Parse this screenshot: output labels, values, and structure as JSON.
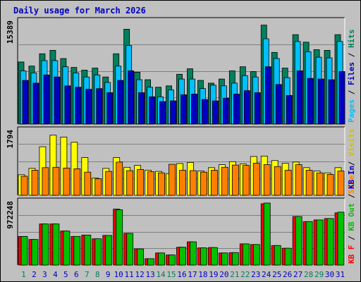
{
  "page": {
    "title": "Daily usage for March 2026"
  },
  "colors": {
    "background": "#c0c0c0",
    "plot": "#c0c0c0",
    "hits": "#00805c",
    "files": "#00c0ff",
    "pages": "#0000c0",
    "visits": "#ffff00",
    "sites": "#ff8000",
    "kb_in": "#00c000",
    "kb_out": "#00c000",
    "kb_f": "#ff0000",
    "label_blue": "#0000c0",
    "day_weekend": "#00805c"
  },
  "chart_data": [
    {
      "type": "bar",
      "name": "hits-files-pages",
      "categories": [
        "1",
        "2",
        "3",
        "4",
        "5",
        "6",
        "7",
        "8",
        "9",
        "10",
        "11",
        "12",
        "13",
        "14",
        "15",
        "16",
        "17",
        "18",
        "19",
        "20",
        "21",
        "22",
        "23",
        "24",
        "25",
        "26",
        "27",
        "28",
        "29",
        "30",
        "31"
      ],
      "ymax_label": "15389",
      "ylim": [
        0,
        15389
      ],
      "series": [
        {
          "name": "Hits",
          "values": [
            9100,
            8500,
            10300,
            10800,
            9600,
            8300,
            7900,
            8200,
            6900,
            10300,
            13900,
            7600,
            6500,
            5400,
            5600,
            7300,
            8100,
            6400,
            6000,
            6600,
            7800,
            8400,
            7700,
            14500,
            10500,
            8200,
            13100,
            12000,
            10900,
            10800,
            13100
          ]
        },
        {
          "name": "Files",
          "values": [
            7800,
            7500,
            9300,
            9300,
            8400,
            7500,
            6900,
            7200,
            6100,
            8500,
            11500,
            6500,
            5400,
            4000,
            5000,
            6600,
            6600,
            5200,
            5700,
            5600,
            6000,
            7100,
            6900,
            12500,
            9600,
            6800,
            12100,
            10600,
            9800,
            9700,
            12100
          ]
        },
        {
          "name": "Pages",
          "values": [
            6400,
            6000,
            7200,
            6900,
            5600,
            5400,
            5100,
            5200,
            4600,
            6400,
            7800,
            4600,
            4000,
            3300,
            3400,
            4300,
            4400,
            3600,
            3400,
            3800,
            4400,
            4900,
            4600,
            8400,
            5800,
            4200,
            7800,
            6700,
            6600,
            6500,
            7700
          ]
        }
      ],
      "legend": [
        "Pages",
        "Files",
        "Hits"
      ],
      "legend_placement": "right"
    },
    {
      "type": "bar",
      "name": "visits-sites",
      "categories": [
        "1",
        "2",
        "3",
        "4",
        "5",
        "6",
        "7",
        "8",
        "9",
        "10",
        "11",
        "12",
        "13",
        "14",
        "15",
        "16",
        "17",
        "18",
        "19",
        "20",
        "21",
        "22",
        "23",
        "24",
        "25",
        "26",
        "27",
        "28",
        "29",
        "30",
        "31"
      ],
      "ymax_label": "1794",
      "ylim": [
        0,
        1794
      ],
      "series": [
        {
          "name": "Visits",
          "values": [
            550,
            720,
            1300,
            1610,
            1560,
            1420,
            1010,
            460,
            720,
            1010,
            750,
            800,
            670,
            640,
            580,
            850,
            880,
            650,
            740,
            820,
            900,
            840,
            1040,
            1050,
            930,
            860,
            890,
            740,
            650,
            600,
            740
          ]
        },
        {
          "name": "Sites",
          "values": [
            510,
            670,
            740,
            750,
            730,
            710,
            620,
            440,
            640,
            890,
            660,
            690,
            630,
            600,
            830,
            670,
            660,
            620,
            670,
            750,
            810,
            800,
            860,
            820,
            770,
            670,
            820,
            670,
            600,
            560,
            650
          ]
        }
      ],
      "legend": [
        "Visits",
        "Sites"
      ],
      "legend_placement": "right"
    },
    {
      "type": "bar",
      "name": "kbytes",
      "categories": [
        "1",
        "2",
        "3",
        "4",
        "5",
        "6",
        "7",
        "8",
        "9",
        "10",
        "11",
        "12",
        "13",
        "14",
        "15",
        "16",
        "17",
        "18",
        "19",
        "20",
        "21",
        "22",
        "23",
        "24",
        "25",
        "26",
        "27",
        "28",
        "29",
        "30",
        "31"
      ],
      "ymax_label": "972248",
      "ylim": [
        0,
        972248
      ],
      "series": [
        {
          "name": "KB F",
          "values": [
            425000,
            380000,
            610000,
            610000,
            505000,
            425000,
            445000,
            390000,
            440000,
            830000,
            470000,
            240000,
            95000,
            180000,
            150000,
            265000,
            345000,
            255000,
            260000,
            180000,
            185000,
            315000,
            305000,
            910000,
            290000,
            250000,
            720000,
            645000,
            670000,
            690000,
            775000
          ]
        },
        {
          "name": "KB In",
          "values": [
            425000,
            380000,
            610000,
            610000,
            505000,
            425000,
            445000,
            390000,
            440000,
            820000,
            470000,
            240000,
            95000,
            180000,
            150000,
            265000,
            345000,
            255000,
            260000,
            180000,
            185000,
            315000,
            305000,
            920000,
            290000,
            250000,
            720000,
            645000,
            670000,
            690000,
            785000
          ]
        }
      ],
      "legend": [
        "KB F",
        "KB Out",
        "KB In"
      ],
      "legend_placement": "right"
    }
  ],
  "x_axis": {
    "weekend_days": [
      "1",
      "7",
      "8",
      "14",
      "15",
      "21",
      "22",
      "28",
      "29"
    ]
  }
}
